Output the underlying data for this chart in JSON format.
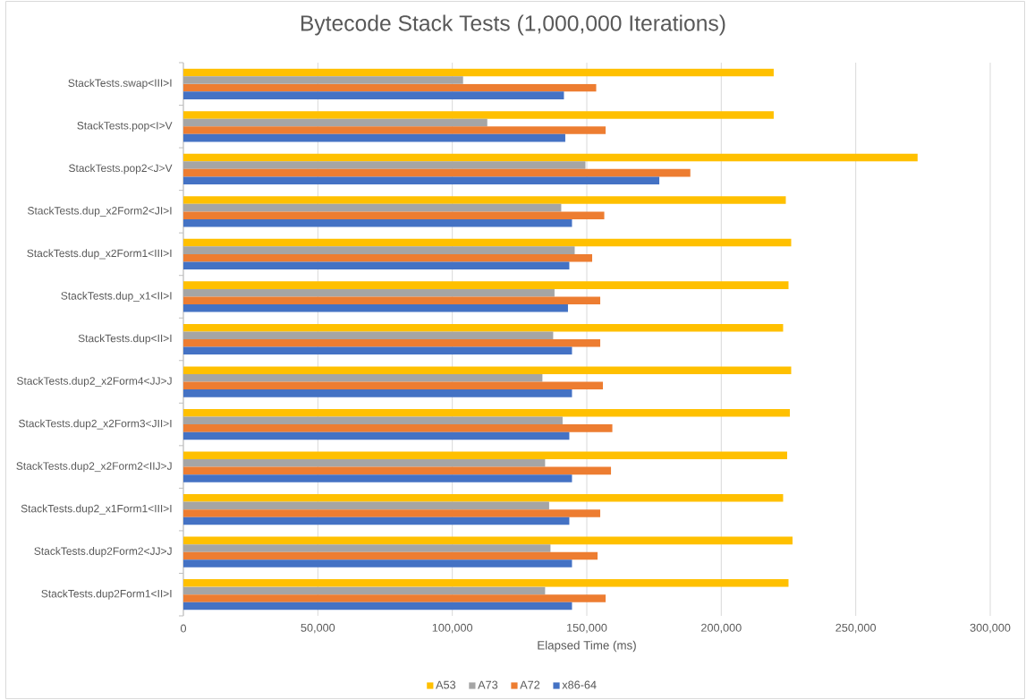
{
  "chart_data": {
    "type": "bar",
    "orientation": "horizontal",
    "title": "Bytecode Stack Tests (1,000,000 Iterations)",
    "xlabel": "Elapsed Time (ms)",
    "categories": [
      "StackTests.swap<III>I",
      "StackTests.pop<I>V",
      "StackTests.pop2<J>V",
      "StackTests.dup_x2Form2<JI>I",
      "StackTests.dup_x2Form1<III>I",
      "StackTests.dup_x1<II>I",
      "StackTests.dup<II>I",
      "StackTests.dup2_x2Form4<JJ>J",
      "StackTests.dup2_x2Form3<JII>I",
      "StackTests.dup2_x2Form2<IIJ>J",
      "StackTests.dup2_x1Form1<III>I",
      "StackTests.dup2Form2<JJ>J",
      "StackTests.dup2Form1<II>I"
    ],
    "series": [
      {
        "name": "A53",
        "color": "#ffc000",
        "values": [
          219500,
          219500,
          273000,
          224000,
          226000,
          225000,
          223000,
          226000,
          225500,
          224500,
          223000,
          226500,
          225000
        ]
      },
      {
        "name": "A73",
        "color": "#a5a5a5",
        "values": [
          104000,
          113000,
          149500,
          140500,
          145500,
          138000,
          137500,
          133500,
          141000,
          134500,
          136000,
          136500,
          134500
        ]
      },
      {
        "name": "A72",
        "color": "#ed7d31",
        "values": [
          153500,
          157000,
          188500,
          156500,
          152000,
          155000,
          155000,
          156000,
          159500,
          159000,
          155000,
          154000,
          157000
        ]
      },
      {
        "name": "x86-64",
        "color": "#4472c4",
        "values": [
          141500,
          142000,
          177000,
          144500,
          143500,
          143000,
          144500,
          144500,
          143500,
          144500,
          143500,
          144500,
          144500
        ]
      }
    ],
    "xlim": [
      0,
      300000
    ],
    "xticks": [
      0,
      {
        "value": 50000,
        "label": "50,000"
      },
      {
        "value": 100000,
        "label": "100,000"
      },
      {
        "value": 150000,
        "label": "150,000"
      },
      {
        "value": 200000,
        "label": "200,000"
      },
      {
        "value": 250000,
        "label": "250,000"
      },
      {
        "value": 300000,
        "label": "300,000"
      }
    ],
    "grid": "x",
    "legend": "bottom"
  }
}
